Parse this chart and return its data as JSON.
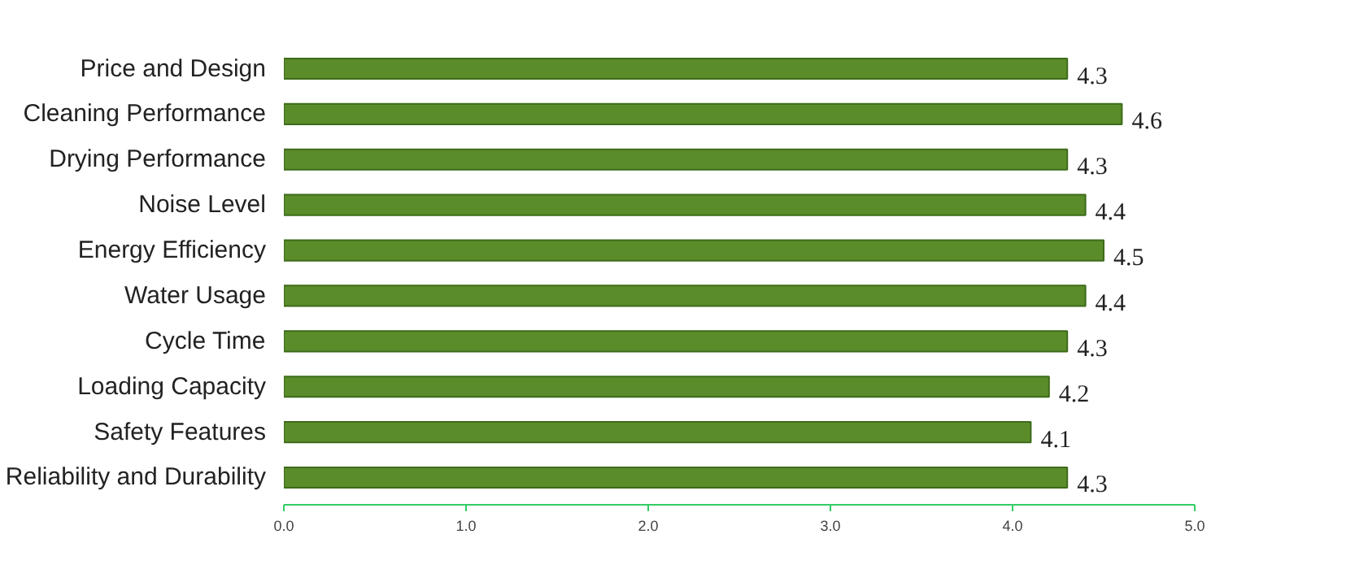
{
  "chart_data": {
    "type": "bar",
    "orientation": "horizontal",
    "categories": [
      "Price and Design",
      "Cleaning Performance",
      "Drying Performance",
      "Noise Level",
      "Energy Efficiency",
      "Water Usage",
      "Cycle Time",
      "Loading Capacity",
      "Safety Features",
      "Reliability and Durability"
    ],
    "values": [
      4.3,
      4.6,
      4.3,
      4.4,
      4.5,
      4.4,
      4.3,
      4.2,
      4.1,
      4.3
    ],
    "color": "#5b8c2a",
    "xlim": [
      0,
      5
    ],
    "xticks": [
      {
        "value": 0,
        "label": "0.0"
      },
      {
        "value": 1,
        "label": "1.0"
      },
      {
        "value": 2,
        "label": "2.0"
      },
      {
        "value": 3,
        "label": "3.0"
      },
      {
        "value": 4,
        "label": "4.0"
      },
      {
        "value": 5,
        "label": "5.0"
      }
    ],
    "grid": false,
    "data_labels": true
  }
}
